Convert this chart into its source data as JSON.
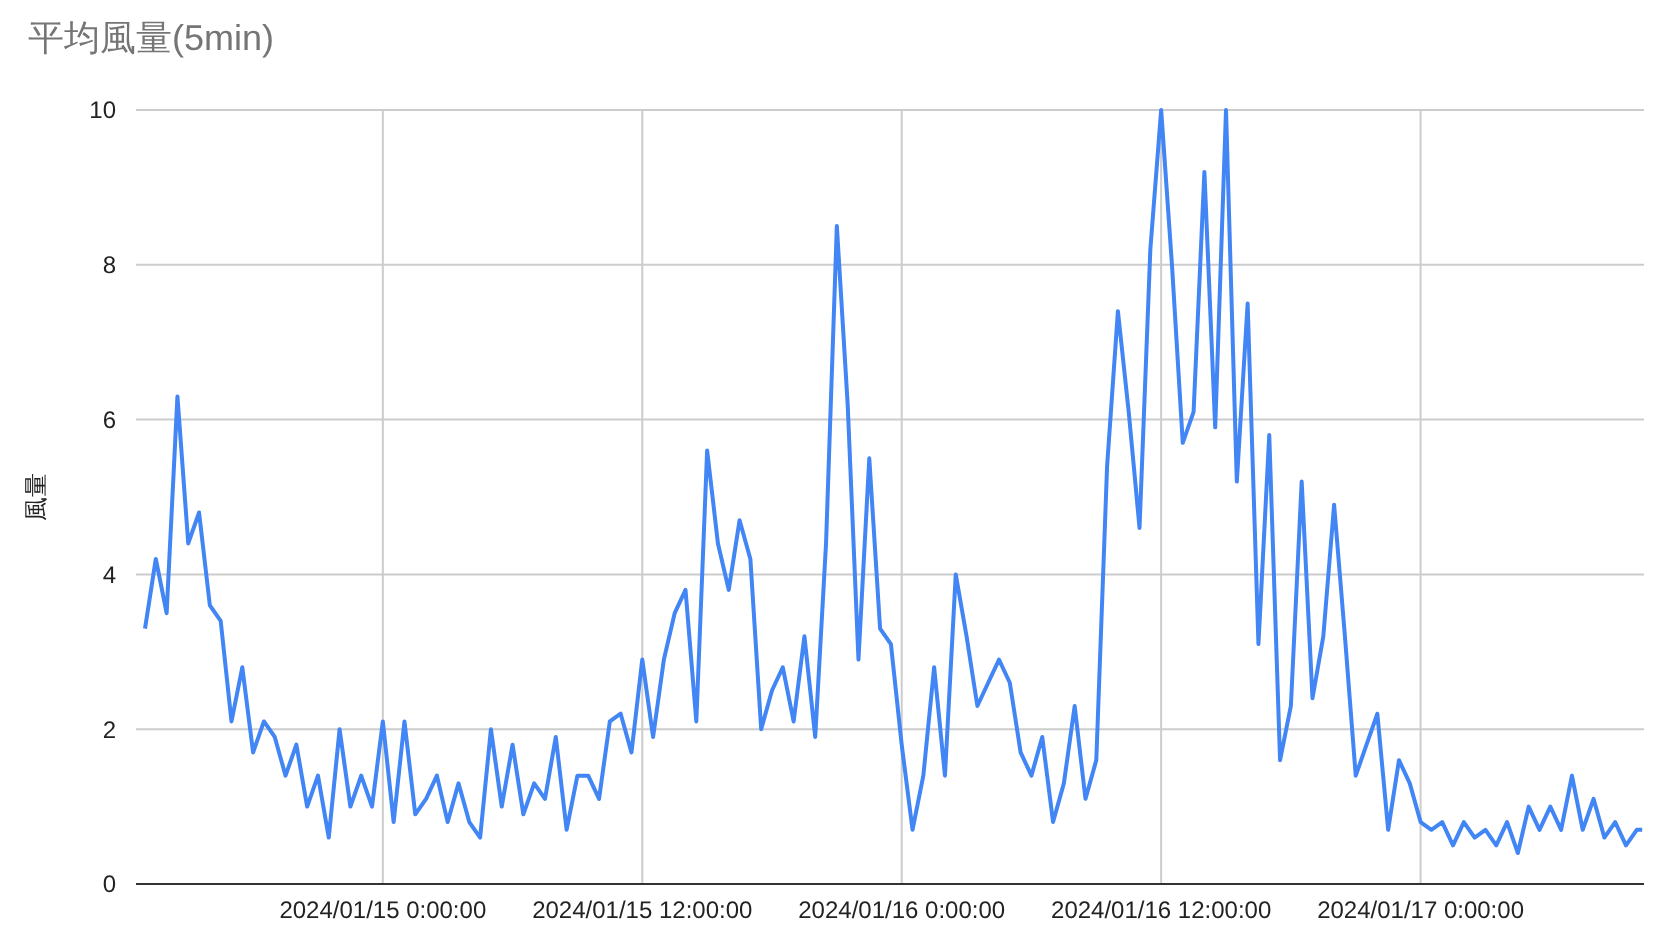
{
  "chart_data": {
    "type": "line",
    "title": "平均風量(5min)",
    "ylabel": "風量",
    "x": [
      "2024-01-14T13:00",
      "2024-01-14T13:30",
      "2024-01-14T14:00",
      "2024-01-14T14:30",
      "2024-01-14T15:00",
      "2024-01-14T15:30",
      "2024-01-14T16:00",
      "2024-01-14T16:30",
      "2024-01-14T17:00",
      "2024-01-14T17:30",
      "2024-01-14T18:00",
      "2024-01-14T18:30",
      "2024-01-14T19:00",
      "2024-01-14T19:30",
      "2024-01-14T20:00",
      "2024-01-14T20:30",
      "2024-01-14T21:00",
      "2024-01-14T21:30",
      "2024-01-14T22:00",
      "2024-01-14T22:30",
      "2024-01-14T23:00",
      "2024-01-14T23:30",
      "2024-01-15T00:00",
      "2024-01-15T00:30",
      "2024-01-15T01:00",
      "2024-01-15T01:30",
      "2024-01-15T02:00",
      "2024-01-15T02:30",
      "2024-01-15T03:00",
      "2024-01-15T03:30",
      "2024-01-15T04:00",
      "2024-01-15T04:30",
      "2024-01-15T05:00",
      "2024-01-15T05:30",
      "2024-01-15T06:00",
      "2024-01-15T06:30",
      "2024-01-15T07:00",
      "2024-01-15T07:30",
      "2024-01-15T08:00",
      "2024-01-15T08:30",
      "2024-01-15T09:00",
      "2024-01-15T09:30",
      "2024-01-15T10:00",
      "2024-01-15T10:30",
      "2024-01-15T11:00",
      "2024-01-15T11:30",
      "2024-01-15T12:00",
      "2024-01-15T12:30",
      "2024-01-15T13:00",
      "2024-01-15T13:30",
      "2024-01-15T14:00",
      "2024-01-15T14:30",
      "2024-01-15T15:00",
      "2024-01-15T15:30",
      "2024-01-15T16:00",
      "2024-01-15T16:30",
      "2024-01-15T17:00",
      "2024-01-15T17:30",
      "2024-01-15T18:00",
      "2024-01-15T18:30",
      "2024-01-15T19:00",
      "2024-01-15T19:30",
      "2024-01-15T20:00",
      "2024-01-15T20:30",
      "2024-01-15T21:00",
      "2024-01-15T21:30",
      "2024-01-15T22:00",
      "2024-01-15T22:30",
      "2024-01-15T23:00",
      "2024-01-15T23:30",
      "2024-01-16T00:00",
      "2024-01-16T00:30",
      "2024-01-16T01:00",
      "2024-01-16T01:30",
      "2024-01-16T02:00",
      "2024-01-16T02:30",
      "2024-01-16T03:00",
      "2024-01-16T03:30",
      "2024-01-16T04:00",
      "2024-01-16T04:30",
      "2024-01-16T05:00",
      "2024-01-16T05:30",
      "2024-01-16T06:00",
      "2024-01-16T06:30",
      "2024-01-16T07:00",
      "2024-01-16T07:30",
      "2024-01-16T08:00",
      "2024-01-16T08:30",
      "2024-01-16T09:00",
      "2024-01-16T09:30",
      "2024-01-16T10:00",
      "2024-01-16T10:30",
      "2024-01-16T11:00",
      "2024-01-16T11:30",
      "2024-01-16T12:00",
      "2024-01-16T12:30",
      "2024-01-16T13:00",
      "2024-01-16T13:30",
      "2024-01-16T14:00",
      "2024-01-16T14:30",
      "2024-01-16T15:00",
      "2024-01-16T15:30",
      "2024-01-16T16:00",
      "2024-01-16T16:30",
      "2024-01-16T17:00",
      "2024-01-16T17:30",
      "2024-01-16T18:00",
      "2024-01-16T18:30",
      "2024-01-16T19:00",
      "2024-01-16T19:30",
      "2024-01-16T20:00",
      "2024-01-16T20:30",
      "2024-01-16T21:00",
      "2024-01-16T21:30",
      "2024-01-16T22:00",
      "2024-01-16T22:30",
      "2024-01-16T23:00",
      "2024-01-16T23:30",
      "2024-01-17T00:00",
      "2024-01-17T00:30",
      "2024-01-17T01:00",
      "2024-01-17T01:30",
      "2024-01-17T02:00",
      "2024-01-17T02:30",
      "2024-01-17T03:00",
      "2024-01-17T03:30",
      "2024-01-17T04:00",
      "2024-01-17T04:30",
      "2024-01-17T05:00",
      "2024-01-17T05:30",
      "2024-01-17T06:00",
      "2024-01-17T06:30",
      "2024-01-17T07:00",
      "2024-01-17T07:30",
      "2024-01-17T08:00",
      "2024-01-17T08:30",
      "2024-01-17T09:00",
      "2024-01-17T09:30",
      "2024-01-17T10:00",
      "2024-01-17T10:15"
    ],
    "series": [
      {
        "color": "#4285f4",
        "values": [
          3.3,
          4.2,
          3.5,
          6.3,
          4.4,
          4.8,
          3.6,
          3.4,
          2.1,
          2.8,
          1.7,
          2.1,
          1.9,
          1.4,
          1.8,
          1.0,
          1.4,
          0.6,
          2.0,
          1.0,
          1.4,
          1.0,
          2.1,
          0.8,
          2.1,
          0.9,
          1.1,
          1.4,
          0.8,
          1.3,
          0.8,
          0.6,
          2.0,
          1.0,
          1.8,
          0.9,
          1.3,
          1.1,
          1.9,
          0.7,
          1.4,
          1.4,
          1.1,
          2.1,
          2.2,
          1.7,
          2.9,
          1.9,
          2.9,
          3.5,
          3.8,
          2.1,
          5.6,
          4.4,
          3.8,
          4.7,
          4.2,
          2.0,
          2.5,
          2.8,
          2.1,
          3.2,
          1.9,
          4.4,
          8.5,
          6.2,
          2.9,
          5.5,
          3.3,
          3.1,
          1.8,
          0.7,
          1.4,
          2.8,
          1.4,
          4.0,
          3.2,
          2.3,
          2.6,
          2.9,
          2.6,
          1.7,
          1.4,
          1.9,
          0.8,
          1.3,
          2.3,
          1.1,
          1.6,
          5.4,
          7.4,
          6.1,
          4.6,
          8.2,
          10,
          8.0,
          5.7,
          6.1,
          9.2,
          5.9,
          10,
          5.2,
          7.5,
          3.1,
          5.8,
          1.6,
          2.3,
          5.2,
          2.4,
          3.2,
          4.9,
          3.2,
          1.4,
          1.8,
          2.2,
          0.7,
          1.6,
          1.3,
          0.8,
          0.7,
          0.8,
          0.5,
          0.8,
          0.6,
          0.7,
          0.5,
          0.8,
          0.4,
          1.0,
          0.7,
          1.0,
          0.7,
          1.4,
          0.7,
          1.1,
          0.6,
          0.8,
          0.5,
          0.7,
          0.7
        ]
      }
    ],
    "xlim": [
      "2024-01-14T12:35",
      "2024-01-17T10:20"
    ],
    "xticks": [
      {
        "value": "2024-01-15T00:00",
        "label": "2024/01/15 0:00:00"
      },
      {
        "value": "2024-01-15T12:00",
        "label": "2024/01/15 12:00:00"
      },
      {
        "value": "2024-01-16T00:00",
        "label": "2024/01/16 0:00:00"
      },
      {
        "value": "2024-01-16T12:00",
        "label": "2024/01/16 12:00:00"
      },
      {
        "value": "2024-01-17T00:00",
        "label": "2024/01/17 0:00:00"
      }
    ],
    "ylim": [
      0,
      10
    ],
    "yticks": [
      0,
      2,
      4,
      6,
      8,
      10
    ],
    "grid": true
  }
}
